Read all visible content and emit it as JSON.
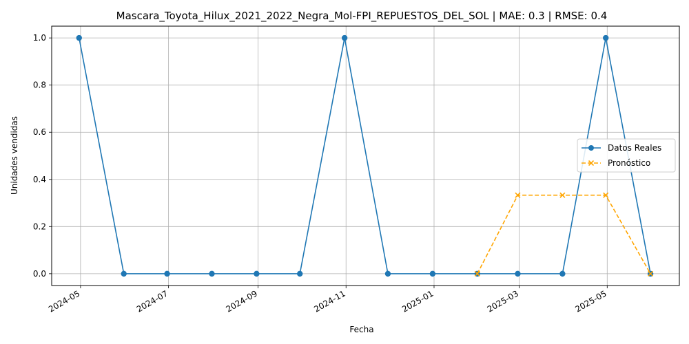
{
  "chart_data": {
    "type": "line",
    "title": "Mascara_Toyota_Hilux_2021_2022_Negra_Mol-FPI_REPUESTOS_DEL_SOL | MAE: 0.3 | RMSE: 0.4",
    "xlabel": "Fecha",
    "ylabel": "Unidades vendidas",
    "xlim": [
      "2024-04-11",
      "2025-06-20"
    ],
    "ylim": [
      -0.05,
      1.05
    ],
    "grid": true,
    "legend_position": "center-right",
    "x_ticks": [
      "2024-05",
      "2024-07",
      "2024-09",
      "2024-11",
      "2025-01",
      "2025-03",
      "2025-05"
    ],
    "x_tick_dates": [
      "2024-05-01",
      "2024-07-01",
      "2024-09-01",
      "2024-11-01",
      "2025-01-01",
      "2025-03-01",
      "2025-05-01"
    ],
    "y_ticks": [
      "0.0",
      "0.2",
      "0.4",
      "0.6",
      "0.8",
      "1.0"
    ],
    "y_tick_values": [
      0,
      0.2,
      0.4,
      0.6,
      0.8,
      1.0
    ],
    "series": [
      {
        "name": "Datos Reales",
        "color": "#1f77b4",
        "style": "solid",
        "marker": "circle",
        "x": [
          "2024-04-30",
          "2024-05-31",
          "2024-06-30",
          "2024-07-31",
          "2024-08-31",
          "2024-09-30",
          "2024-10-31",
          "2024-11-30",
          "2024-12-31",
          "2025-01-31",
          "2025-02-28",
          "2025-03-31",
          "2025-04-30",
          "2025-05-31"
        ],
        "values": [
          1,
          0,
          0,
          0,
          0,
          0,
          1,
          0,
          0,
          0,
          0,
          0,
          1,
          0
        ]
      },
      {
        "name": "Pronóstico",
        "color": "#ffa500",
        "style": "dashed",
        "marker": "x",
        "x": [
          "2025-01-31",
          "2025-02-28",
          "2025-03-31",
          "2025-04-30",
          "2025-05-31"
        ],
        "values": [
          0,
          0.333,
          0.333,
          0.333,
          0
        ]
      }
    ]
  }
}
